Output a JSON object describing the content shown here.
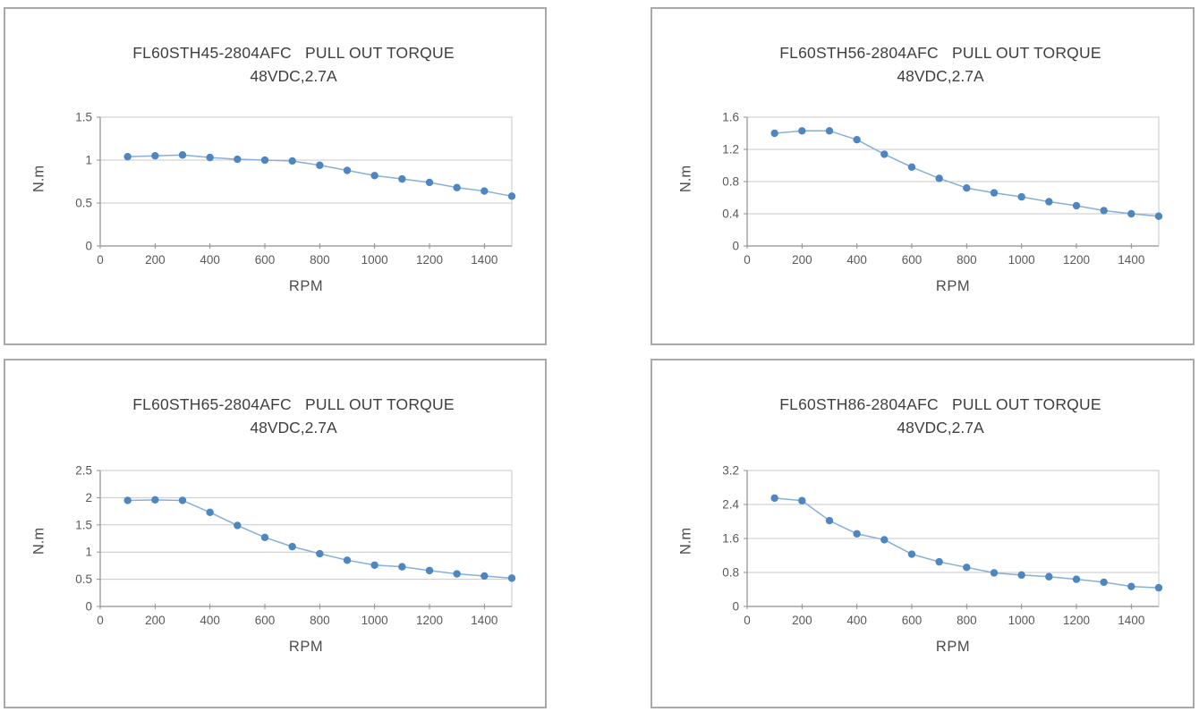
{
  "colors": {
    "line": "#86afd9",
    "marker": "#4e86c0",
    "grid": "#c9c9c9",
    "axis": "#8f8f8f",
    "tick_text": "#595959",
    "title_text": "#3f3f3f",
    "panel_border": "#a9a9a9",
    "background": "#ffffff"
  },
  "chart_data": [
    {
      "type": "line",
      "title": "FL60STH45-2804AFC   PULL OUT TORQUE",
      "subtitle": "48VDC,2.7A",
      "xlabel": "RPM",
      "ylabel": "N.m",
      "xlim": [
        0,
        1500
      ],
      "ylim": [
        0,
        1.5
      ],
      "x_ticks": [
        "0",
        "200",
        "400",
        "600",
        "800",
        "1000",
        "1200",
        "1400"
      ],
      "y_ticks": [
        "0",
        "0.5",
        "1",
        "1.5"
      ],
      "grid": true,
      "legend": false,
      "x": [
        100,
        200,
        300,
        400,
        500,
        600,
        700,
        800,
        900,
        1000,
        1100,
        1200,
        1300,
        1400,
        1500
      ],
      "y": [
        1.04,
        1.05,
        1.06,
        1.03,
        1.01,
        1.0,
        0.99,
        0.94,
        0.88,
        0.82,
        0.78,
        0.74,
        0.68,
        0.64,
        0.58
      ]
    },
    {
      "type": "line",
      "title": "FL60STH56-2804AFC   PULL OUT TORQUE",
      "subtitle": "48VDC,2.7A",
      "xlabel": "RPM",
      "ylabel": "N.m",
      "xlim": [
        0,
        1500
      ],
      "ylim": [
        0,
        1.6
      ],
      "x_ticks": [
        "0",
        "200",
        "400",
        "600",
        "800",
        "1000",
        "1200",
        "1400"
      ],
      "y_ticks": [
        "0",
        "0.4",
        "0.8",
        "1.2",
        "1.6"
      ],
      "grid": true,
      "legend": false,
      "x": [
        100,
        200,
        300,
        400,
        500,
        600,
        700,
        800,
        900,
        1000,
        1100,
        1200,
        1300,
        1400,
        1500
      ],
      "y": [
        1.4,
        1.43,
        1.43,
        1.32,
        1.14,
        0.98,
        0.84,
        0.72,
        0.66,
        0.61,
        0.55,
        0.5,
        0.44,
        0.4,
        0.37
      ]
    },
    {
      "type": "line",
      "title": "FL60STH65-2804AFC   PULL OUT TORQUE",
      "subtitle": "48VDC,2.7A",
      "xlabel": "RPM",
      "ylabel": "N.m",
      "xlim": [
        0,
        1500
      ],
      "ylim": [
        0,
        2.5
      ],
      "x_ticks": [
        "0",
        "200",
        "400",
        "600",
        "800",
        "1000",
        "1200",
        "1400"
      ],
      "y_ticks": [
        "0",
        "0.5",
        "1",
        "1.5",
        "2",
        "2.5"
      ],
      "grid": true,
      "legend": false,
      "x": [
        100,
        200,
        300,
        400,
        500,
        600,
        700,
        800,
        900,
        1000,
        1100,
        1200,
        1300,
        1400,
        1500
      ],
      "y": [
        1.95,
        1.96,
        1.95,
        1.73,
        1.49,
        1.27,
        1.1,
        0.97,
        0.85,
        0.76,
        0.73,
        0.66,
        0.6,
        0.56,
        0.52
      ]
    },
    {
      "type": "line",
      "title": "FL60STH86-2804AFC   PULL OUT TORQUE",
      "subtitle": "48VDC,2.7A",
      "xlabel": "RPM",
      "ylabel": "N.m",
      "xlim": [
        0,
        1500
      ],
      "ylim": [
        0,
        3.2
      ],
      "x_ticks": [
        "0",
        "200",
        "400",
        "600",
        "800",
        "1000",
        "1200",
        "1400"
      ],
      "y_ticks": [
        "0",
        "0.8",
        "1.6",
        "2.4",
        "3.2"
      ],
      "grid": true,
      "legend": false,
      "x": [
        100,
        200,
        300,
        400,
        500,
        600,
        700,
        800,
        900,
        1000,
        1100,
        1200,
        1300,
        1400,
        1500
      ],
      "y": [
        2.55,
        2.49,
        2.02,
        1.71,
        1.57,
        1.23,
        1.05,
        0.92,
        0.79,
        0.74,
        0.7,
        0.64,
        0.57,
        0.47,
        0.44
      ]
    }
  ]
}
